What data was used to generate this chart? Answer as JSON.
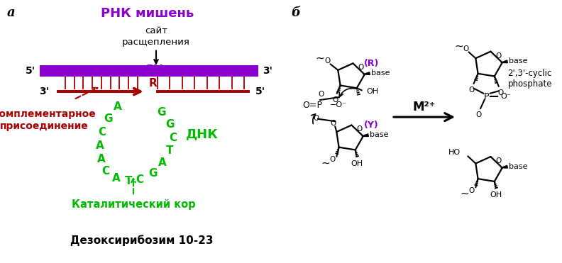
{
  "panel_a_label": "а",
  "panel_b_label": "б",
  "rna_label": "РНК мишень",
  "site_label": "сайт\nрасщепления",
  "complementary_label": "Комплементарное\nприсоединение",
  "catalytic_label": "Каталитический кор",
  "dna_label": "ДНК",
  "deoxyribozyme_label": "Дезоксирибозим 10-23",
  "m2plus_label": "М²⁺",
  "cyclic_label": "2',3'-cyclic\nphosphate",
  "rna_color": "#8B00CC",
  "dna_color": "#AA0000",
  "loop_color": "#00BB00",
  "purple": "#8B00CC",
  "green": "#00BB00",
  "red": "#AA0000",
  "black": "#000000",
  "loop_letters_left": [
    [
      "A",
      4.15,
      5.95
    ],
    [
      "G",
      3.82,
      5.48
    ],
    [
      "C",
      3.6,
      4.98
    ],
    [
      "A",
      3.52,
      4.46
    ],
    [
      "A",
      3.57,
      3.94
    ],
    [
      "C",
      3.73,
      3.5
    ]
  ],
  "loop_letters_bottom": [
    [
      "A",
      4.1,
      3.22
    ],
    [
      "T",
      4.52,
      3.1
    ],
    [
      "C",
      4.93,
      3.18
    ]
  ],
  "loop_letters_right": [
    [
      "G",
      5.38,
      3.42
    ],
    [
      "A",
      5.72,
      3.82
    ],
    [
      "T",
      5.98,
      4.28
    ],
    [
      "C",
      6.1,
      4.77
    ],
    [
      "G",
      5.98,
      5.27
    ],
    [
      "G",
      5.7,
      5.73
    ]
  ]
}
